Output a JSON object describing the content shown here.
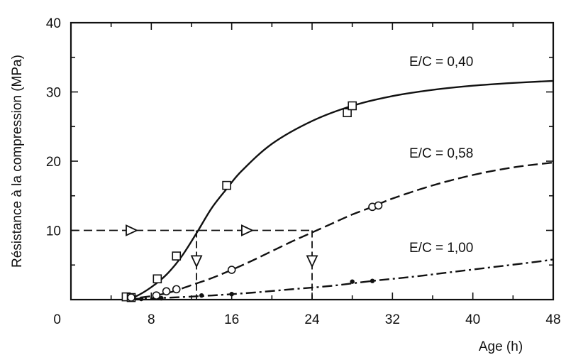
{
  "chart_data": {
    "type": "line",
    "title": "",
    "xlabel": "Age (h)",
    "ylabel": "Résistance à la compression (MPa)",
    "xlim": [
      0,
      48
    ],
    "ylim": [
      0,
      40
    ],
    "x_ticks": [
      8,
      16,
      24,
      32,
      40,
      48
    ],
    "y_ticks": [
      10,
      20,
      30,
      40
    ],
    "origin_label": "0",
    "grid": false,
    "series": [
      {
        "name": "E/C = 0,40",
        "line_style": "solid",
        "marker": "square",
        "curve": [
          [
            5.5,
            0.2
          ],
          [
            6.5,
            0.5
          ],
          [
            8,
            1.8
          ],
          [
            9.5,
            3.6
          ],
          [
            11,
            6.2
          ],
          [
            12.5,
            9.6
          ],
          [
            14,
            13.2
          ],
          [
            15.5,
            16.0
          ],
          [
            17,
            18.6
          ],
          [
            20,
            22.5
          ],
          [
            24,
            25.8
          ],
          [
            28,
            28.0
          ],
          [
            32,
            29.4
          ],
          [
            36,
            30.3
          ],
          [
            40,
            30.9
          ],
          [
            44,
            31.3
          ],
          [
            48,
            31.6
          ]
        ],
        "markers": [
          [
            5.5,
            0.4
          ],
          [
            6,
            0.3
          ],
          [
            8.6,
            3.0
          ],
          [
            10.5,
            6.3
          ],
          [
            15.5,
            16.5
          ],
          [
            27.5,
            27.0
          ],
          [
            28,
            28.0
          ]
        ]
      },
      {
        "name": "E/C = 0,58",
        "line_style": "dashed",
        "marker": "circle",
        "curve": [
          [
            5.5,
            0.1
          ],
          [
            8,
            0.5
          ],
          [
            10,
            1.1
          ],
          [
            12,
            2.1
          ],
          [
            14,
            3.1
          ],
          [
            16,
            4.3
          ],
          [
            18,
            5.6
          ],
          [
            20,
            7.0
          ],
          [
            22,
            8.4
          ],
          [
            24,
            9.7
          ],
          [
            26,
            11.0
          ],
          [
            28,
            12.3
          ],
          [
            30,
            13.4
          ],
          [
            32,
            14.6
          ],
          [
            36,
            16.5
          ],
          [
            40,
            18.0
          ],
          [
            44,
            19.1
          ],
          [
            48,
            19.8
          ]
        ],
        "markers": [
          [
            6,
            0.3
          ],
          [
            8.5,
            0.6
          ],
          [
            9.5,
            1.2
          ],
          [
            10.5,
            1.5
          ],
          [
            16,
            4.3
          ],
          [
            30,
            13.4
          ],
          [
            30.6,
            13.6
          ]
        ]
      },
      {
        "name": "E/C = 1,00",
        "line_style": "dash-dot",
        "marker": "dot",
        "curve": [
          [
            6,
            0.1
          ],
          [
            10,
            0.3
          ],
          [
            14,
            0.6
          ],
          [
            18,
            1.0
          ],
          [
            22,
            1.5
          ],
          [
            26,
            2.0
          ],
          [
            30,
            2.7
          ],
          [
            34,
            3.3
          ],
          [
            38,
            4.0
          ],
          [
            42,
            4.7
          ],
          [
            46,
            5.4
          ],
          [
            48,
            5.8
          ]
        ],
        "markers": [
          [
            7,
            0.1
          ],
          [
            9,
            0.2
          ],
          [
            13,
            0.6
          ],
          [
            16,
            0.8
          ],
          [
            28,
            2.6
          ],
          [
            30,
            2.7
          ]
        ]
      }
    ],
    "annotations": {
      "reference_level": 10,
      "reference_line": {
        "y": 10,
        "x_from": 0,
        "x_to": 24
      },
      "right_arrows_x": [
        6,
        17.5
      ],
      "drop_lines": [
        {
          "x": 12.5,
          "y_from": 10,
          "y_to": 0
        },
        {
          "x": 24,
          "y_from": 10,
          "y_to": 0
        }
      ],
      "down_arrows_y": 5.5
    }
  }
}
